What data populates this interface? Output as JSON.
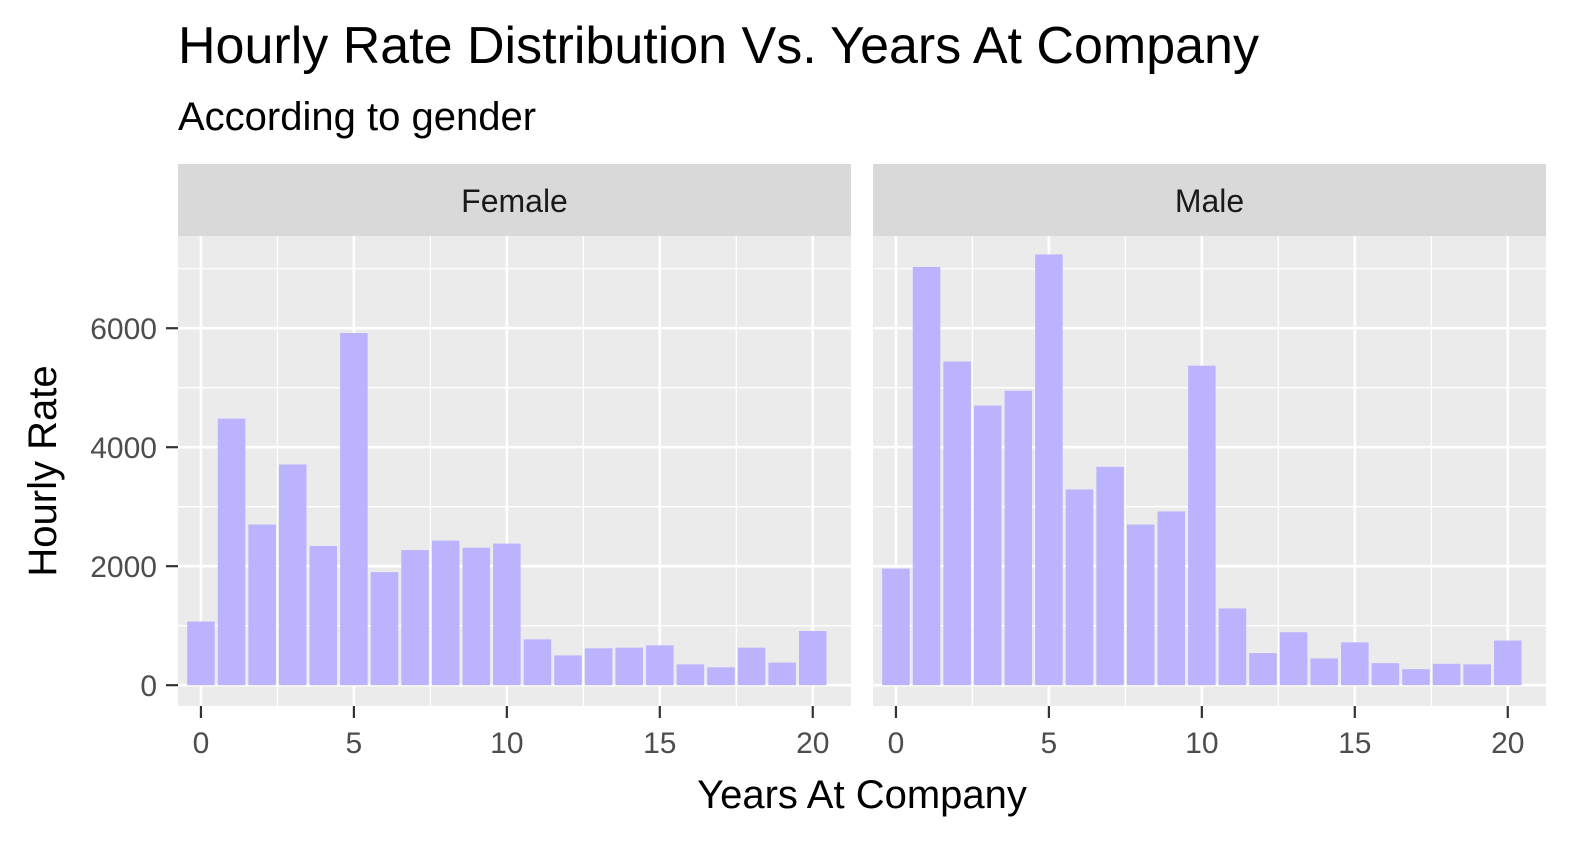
{
  "chart_data": {
    "type": "bar",
    "title": "Hourly Rate Distribution Vs. Years At Company",
    "subtitle": "According to gender",
    "xlabel": "Years At Company",
    "ylabel": "Hourly Rate",
    "xlim": [
      -0.75,
      21.25
    ],
    "ylim": [
      -350,
      7550
    ],
    "x_ticks": [
      0,
      5,
      10,
      15,
      20
    ],
    "y_ticks": [
      0,
      2000,
      4000,
      6000
    ],
    "x": [
      0,
      1,
      2,
      3,
      4,
      5,
      6,
      7,
      8,
      9,
      10,
      11,
      12,
      13,
      14,
      15,
      16,
      17,
      18,
      19,
      20
    ],
    "bar_color": "#bbb3fd",
    "panel_bg": "#ebebeb",
    "strip_bg": "#d9d9d9",
    "grid": true,
    "facets": [
      {
        "name": "Female",
        "values": [
          1070,
          4480,
          2700,
          3710,
          2340,
          5920,
          1900,
          2270,
          2430,
          2310,
          2380,
          770,
          500,
          620,
          630,
          670,
          350,
          300,
          630,
          380,
          910
        ]
      },
      {
        "name": "Male",
        "values": [
          1960,
          7030,
          5440,
          4700,
          4950,
          7240,
          3290,
          3670,
          2700,
          2920,
          5370,
          1290,
          540,
          890,
          450,
          720,
          370,
          270,
          360,
          350,
          750
        ]
      }
    ]
  }
}
